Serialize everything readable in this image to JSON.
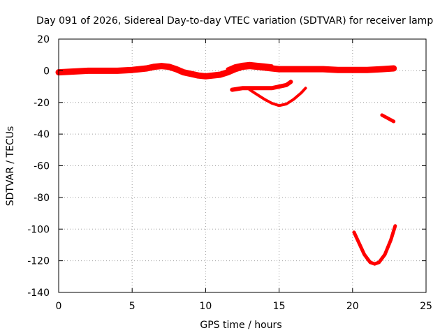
{
  "chart_data": {
    "type": "line",
    "title": "Day 091 of 2026, Sidereal Day-to-day VTEC variation (SDTVAR) for receiver lamp",
    "xlabel": "GPS time / hours",
    "ylabel": "SDTVAR / TECUs",
    "xlim": [
      0,
      25
    ],
    "ylim": [
      -140,
      20
    ],
    "xticks": [
      0,
      5,
      10,
      15,
      20,
      25
    ],
    "yticks": [
      -140,
      -120,
      -100,
      -80,
      -60,
      -40,
      -20,
      0,
      20
    ],
    "grid": true,
    "series_color": "#ff0000",
    "series": [
      {
        "name": "main band",
        "width": 9,
        "x": [
          0,
          1,
          2,
          3,
          4,
          5,
          5.5,
          6,
          6.5,
          7,
          7.5,
          8,
          8.5,
          9,
          9.5,
          10,
          10.5,
          11,
          11.5,
          12,
          12.5,
          13,
          13.5,
          14,
          14.5,
          15,
          16,
          17,
          18,
          19,
          20,
          21,
          22,
          22.8
        ],
        "y": [
          -1,
          -0.5,
          0,
          0,
          0,
          0.5,
          1,
          1.5,
          2.5,
          3,
          2.5,
          1,
          -1,
          -2,
          -3,
          -3.5,
          -3,
          -2.5,
          -1,
          1,
          2.5,
          3,
          2.5,
          2,
          1.5,
          1,
          1,
          1,
          1,
          0.5,
          0.5,
          0.5,
          1,
          1.5
        ]
      },
      {
        "name": "upper noise",
        "width": 5,
        "x": [
          11.5,
          12,
          12.5,
          13,
          13.5,
          14,
          14.5
        ],
        "y": [
          1,
          3,
          4,
          4.5,
          4,
          3.5,
          3
        ]
      },
      {
        "name": "flat segment",
        "width": 6,
        "x": [
          11.8,
          12.5,
          13,
          13.5,
          14,
          14.5,
          15,
          15.5,
          15.8
        ],
        "y": [
          -12,
          -11,
          -11,
          -11,
          -11,
          -11,
          -10,
          -9,
          -7
        ]
      },
      {
        "name": "dip arc",
        "width": 4,
        "x": [
          13,
          13.5,
          14,
          14.5,
          15,
          15.5,
          16,
          16.5,
          16.8
        ],
        "y": [
          -12,
          -15,
          -18,
          -20.5,
          -22,
          -21,
          -18,
          -14,
          -11
        ]
      },
      {
        "name": "short segment",
        "width": 5,
        "x": [
          22,
          22.4,
          22.8
        ],
        "y": [
          -28,
          -30,
          -32
        ]
      },
      {
        "name": "deep arc",
        "width": 5,
        "x": [
          20.1,
          20.4,
          20.8,
          21.2,
          21.5,
          21.8,
          22.2,
          22.6,
          22.9
        ],
        "y": [
          -102,
          -108,
          -116,
          -121,
          -122,
          -121,
          -116,
          -107,
          -98
        ]
      }
    ]
  }
}
